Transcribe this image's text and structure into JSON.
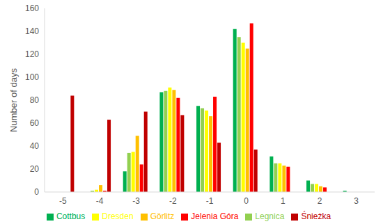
{
  "chart_data": {
    "type": "bar",
    "y_label": "Number of days",
    "categories": [
      -5,
      -4,
      -3,
      -2,
      -1,
      0,
      1,
      2,
      3
    ],
    "series": [
      {
        "name": "Cottbus",
        "color": "#00B050",
        "values": [
          0,
          0,
          18,
          87,
          75,
          142,
          31,
          10,
          1
        ]
      },
      {
        "name": "Legnica",
        "color": "#92D050",
        "values": [
          0,
          1,
          34,
          88,
          73,
          135,
          25,
          7,
          0
        ]
      },
      {
        "name": "Dresden",
        "color": "#FFFF00",
        "values": [
          0,
          2,
          35,
          91,
          71,
          130,
          25,
          7,
          0
        ]
      },
      {
        "name": "Görlitz",
        "color": "#FFC000",
        "values": [
          0,
          6,
          49,
          89,
          66,
          125,
          23,
          5,
          0
        ]
      },
      {
        "name": "Jelenia Góra",
        "color": "#FF0000",
        "values": [
          0,
          1,
          24,
          82,
          83,
          147,
          22,
          4,
          0
        ]
      },
      {
        "name": "Śnieżka",
        "color": "#C00000",
        "values": [
          84,
          63,
          70,
          67,
          43,
          37,
          0,
          0,
          0
        ]
      }
    ],
    "ylim": [
      0,
      160
    ],
    "yticks": [
      0,
      20,
      40,
      60,
      80,
      100,
      120,
      140,
      160
    ],
    "grid": false,
    "legend": "bottom"
  }
}
